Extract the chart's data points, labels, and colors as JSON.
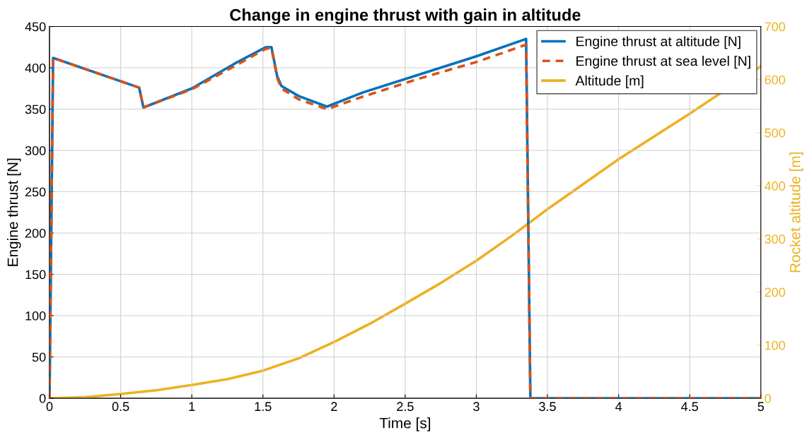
{
  "chart_data": {
    "type": "line",
    "title": "Change in engine thrust with gain in altitude",
    "xlabel": "Time [s]",
    "ylabel": "Engine thrust [N]",
    "y2label": "Rocket altitude [m]",
    "xlim": [
      0,
      5
    ],
    "xticks": [
      0,
      0.5,
      1,
      1.5,
      2,
      2.5,
      3,
      3.5,
      4,
      4.5,
      5
    ],
    "ylim": [
      0,
      450
    ],
    "yticks": [
      0,
      50,
      100,
      150,
      200,
      250,
      300,
      350,
      400,
      450
    ],
    "y2lim": [
      0,
      700
    ],
    "y2ticks": [
      0,
      100,
      200,
      300,
      400,
      500,
      600,
      700
    ],
    "grid": true,
    "legend": "top right",
    "series": [
      {
        "name": "Engine thrust at altitude [N]",
        "color": "#0072bd",
        "line_style": "solid",
        "x": [
          0,
          0.025,
          0.63,
          0.66,
          1.0,
          1.3,
          1.52,
          1.56,
          1.6,
          1.63,
          1.75,
          1.95,
          2.2,
          2.6,
          3.0,
          3.35,
          3.38,
          5
        ],
        "values": [
          0,
          412,
          376,
          352,
          375,
          405,
          425,
          425,
          390,
          378,
          366,
          353,
          370,
          392,
          414,
          435,
          0,
          0
        ]
      },
      {
        "name": "Engine thrust at sea level [N]",
        "color": "#d95319",
        "line_style": "dashed",
        "x": [
          0,
          0.025,
          0.63,
          0.66,
          1.0,
          1.3,
          1.52,
          1.56,
          1.6,
          1.63,
          1.75,
          1.95,
          2.2,
          2.6,
          3.0,
          3.35,
          3.38,
          5
        ],
        "values": [
          0,
          412,
          376,
          352,
          374,
          402,
          423,
          424,
          388,
          375,
          362,
          350,
          365,
          387,
          407,
          428,
          0,
          0
        ]
      },
      {
        "name": "Altitude [m]",
        "color": "#edb120",
        "line_style": "solid",
        "axis": "y2",
        "x": [
          0,
          0.25,
          0.5,
          0.75,
          1.0,
          1.25,
          1.5,
          1.75,
          2.0,
          2.25,
          2.5,
          2.75,
          3.0,
          3.25,
          3.5,
          3.75,
          4.0,
          4.5,
          5.0
        ],
        "values": [
          0,
          2,
          8,
          15,
          25,
          36,
          52,
          75,
          106,
          140,
          178,
          217,
          259,
          306,
          356,
          403,
          450,
          536,
          625
        ]
      }
    ]
  }
}
